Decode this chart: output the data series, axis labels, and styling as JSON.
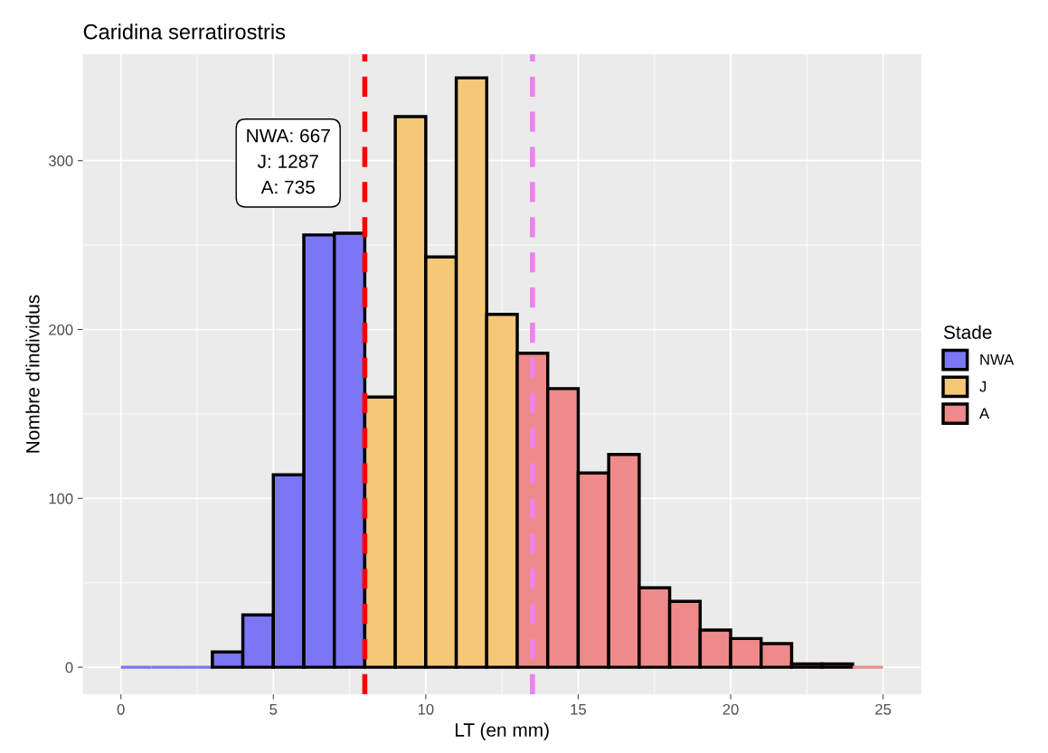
{
  "chart_data": {
    "type": "histogram",
    "title": "Caridina serratirostris",
    "xlabel": "LT (en mm)",
    "ylabel": "Nombre d'individus",
    "legend_title": "Stade",
    "bins": [
      0,
      1,
      2,
      3,
      4,
      5,
      6,
      7,
      8,
      9,
      10,
      11,
      12,
      13,
      14,
      15,
      16,
      17,
      18,
      19,
      20,
      21,
      22,
      23,
      24,
      25
    ],
    "series": [
      {
        "name": "NWA",
        "color": "#7b76f5",
        "values": [
          0,
          0,
          0,
          9,
          31,
          114,
          256,
          257,
          null,
          null,
          null,
          null,
          null,
          null,
          null,
          null,
          null,
          null,
          null,
          null,
          null,
          null,
          null,
          null,
          null
        ]
      },
      {
        "name": "J",
        "color": "#f5c878",
        "values": [
          null,
          null,
          null,
          null,
          null,
          null,
          null,
          null,
          160,
          326,
          243,
          349,
          209,
          null,
          null,
          null,
          null,
          null,
          null,
          null,
          null,
          null,
          null,
          null,
          null
        ]
      },
      {
        "name": "A",
        "color": "#ee8b8a",
        "values": [
          null,
          null,
          null,
          null,
          null,
          null,
          null,
          null,
          null,
          null,
          null,
          null,
          null,
          186,
          165,
          115,
          126,
          47,
          39,
          22,
          17,
          14,
          2,
          2,
          0
        ]
      }
    ],
    "ref_lines": [
      {
        "axis": "x",
        "value": 8,
        "color": "#ff0000",
        "line_style": "dashed"
      },
      {
        "axis": "x",
        "value": 13.5,
        "color": "#ee82ee",
        "line_style": "dashed"
      }
    ],
    "annotations": [
      "NWA: 667\nJ: 1287\nA: 735"
    ],
    "xlim": [
      -1.25,
      26.25
    ],
    "xticks": [
      0,
      5,
      10,
      15,
      20,
      25
    ],
    "ylim": [
      -16,
      363
    ],
    "yticks": [
      0,
      100,
      200,
      300
    ],
    "grid": true,
    "legend": "right"
  }
}
